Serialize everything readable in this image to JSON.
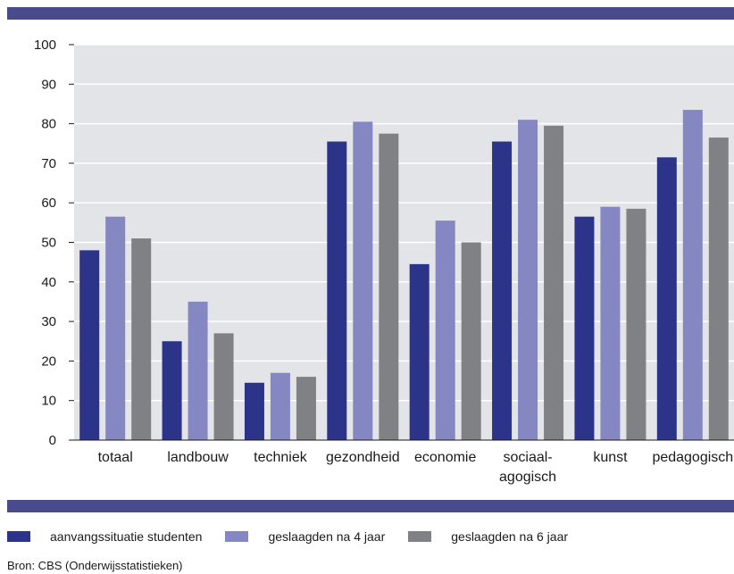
{
  "chart_data": {
    "type": "bar",
    "categories": [
      [
        "totaal"
      ],
      [
        "landbouw"
      ],
      [
        "techniek"
      ],
      [
        "gezondheid"
      ],
      [
        "economie"
      ],
      [
        "sociaal-",
        "agogisch"
      ],
      [
        "kunst"
      ],
      [
        "pedagogisch"
      ]
    ],
    "series": [
      {
        "name": "aanvangssituatie studenten",
        "color": "#2b3488",
        "values": [
          48,
          25,
          14.5,
          75.5,
          44.5,
          75.5,
          56.5,
          71.5
        ]
      },
      {
        "name": "geslaagden na 4 jaar",
        "color": "#8487c2",
        "values": [
          56.5,
          35,
          17,
          80.5,
          55.5,
          81,
          59,
          83.5
        ]
      },
      {
        "name": "geslaagden na 6 jaar",
        "color": "#808184",
        "values": [
          51,
          27,
          16,
          77.5,
          50,
          79.5,
          58.5,
          76.5
        ]
      }
    ],
    "ylim": [
      0,
      100
    ],
    "yticks": [
      0,
      10,
      20,
      30,
      40,
      50,
      60,
      70,
      80,
      90,
      100
    ],
    "grid": true,
    "legend_position": "bottom",
    "source": "Bron: CBS (Onderwijsstatistieken)"
  }
}
